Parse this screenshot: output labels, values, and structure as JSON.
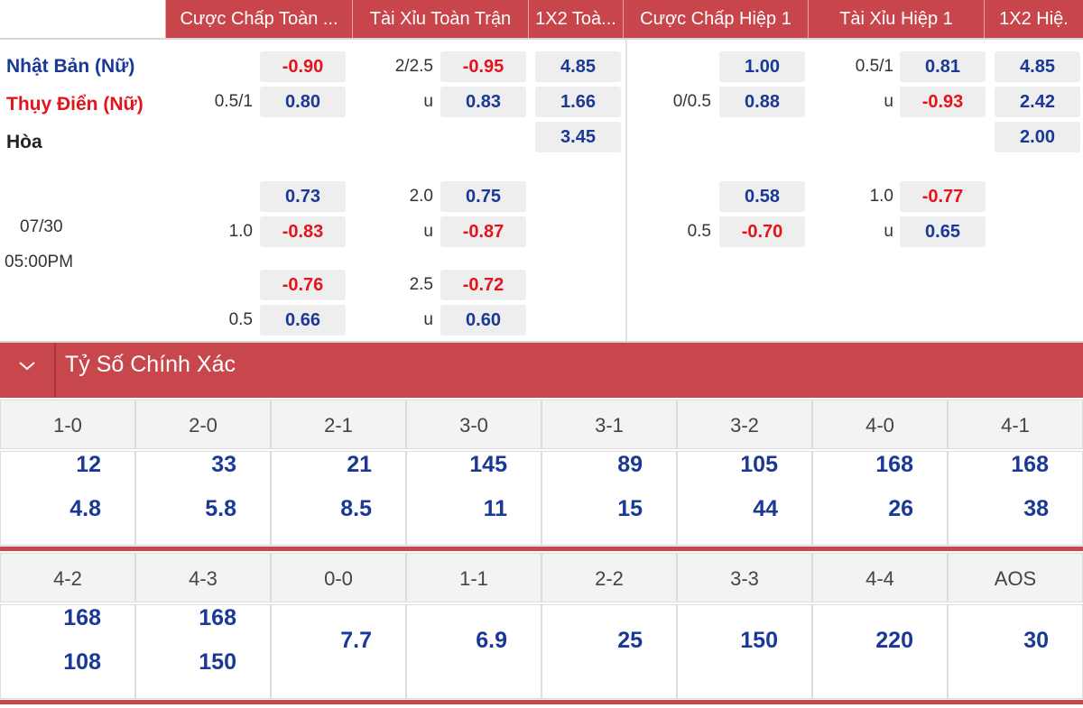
{
  "columns": [
    "Cược Chấp Toàn ...",
    "Tài Xỉu Toàn Trận",
    "1X2 Toà...",
    "Cược Chấp Hiệp 1",
    "Tài Xỉu Hiệp 1",
    "1X2 Hiệ."
  ],
  "match": {
    "home": "Nhật Bản (Nữ)",
    "away": "Thụy Điển (Nữ)",
    "draw": "Hòa",
    "date": "07/30",
    "time": "05:00PM"
  },
  "odds_rows": [
    {
      "hdp_odds": "-0.90",
      "ou_line": "2/2.5",
      "ou_odds": "-0.95",
      "x12": "4.85",
      "h1_hdp_odds": "1.00",
      "h1_ou_line": "0.5/1",
      "h1_ou_odds": "0.81",
      "h1_x12": "4.85"
    },
    {
      "hdp_line": "0.5/1",
      "hdp_odds": "0.80",
      "ou_line": "u",
      "ou_odds": "0.83",
      "x12": "1.66",
      "h1_hdp_line": "0/0.5",
      "h1_hdp_odds": "0.88",
      "h1_ou_line": "u",
      "h1_ou_odds": "-0.93",
      "h1_x12": "2.42"
    },
    {
      "x12": "3.45",
      "h1_x12": "2.00"
    },
    {
      "hdp_odds": "0.73",
      "ou_line": "2.0",
      "ou_odds": "0.75",
      "h1_hdp_odds": "0.58",
      "h1_ou_line": "1.0",
      "h1_ou_odds": "-0.77"
    },
    {
      "hdp_line": "1.0",
      "hdp_odds": "-0.83",
      "ou_line": "u",
      "ou_odds": "-0.87",
      "h1_hdp_line": "0.5",
      "h1_hdp_odds": "-0.70",
      "h1_ou_line": "u",
      "h1_ou_odds": "0.65"
    },
    {
      "hdp_odds": "-0.76",
      "ou_line": "2.5",
      "ou_odds": "-0.72"
    },
    {
      "hdp_line": "0.5",
      "hdp_odds": "0.66",
      "ou_line": "u",
      "ou_odds": "0.60"
    }
  ],
  "correct_score": {
    "title": "Tỷ Số Chính Xác",
    "groups": [
      {
        "scores": [
          {
            "label": "1-0",
            "odds": [
              "12",
              "4.8"
            ]
          },
          {
            "label": "2-0",
            "odds": [
              "33",
              "5.8"
            ]
          },
          {
            "label": "2-1",
            "odds": [
              "21",
              "8.5"
            ]
          },
          {
            "label": "3-0",
            "odds": [
              "145",
              "11"
            ]
          },
          {
            "label": "3-1",
            "odds": [
              "89",
              "15"
            ]
          },
          {
            "label": "3-2",
            "odds": [
              "105",
              "44"
            ]
          },
          {
            "label": "4-0",
            "odds": [
              "168",
              "26"
            ]
          },
          {
            "label": "4-1",
            "odds": [
              "168",
              "38"
            ]
          }
        ]
      },
      {
        "scores": [
          {
            "label": "4-2",
            "odds": [
              "168",
              "108"
            ]
          },
          {
            "label": "4-3",
            "odds": [
              "168",
              "150"
            ]
          },
          {
            "label": "0-0",
            "odds": [
              "7.7"
            ]
          },
          {
            "label": "1-1",
            "odds": [
              "6.9"
            ]
          },
          {
            "label": "2-2",
            "odds": [
              "25"
            ]
          },
          {
            "label": "3-3",
            "odds": [
              "150"
            ]
          },
          {
            "label": "4-4",
            "odds": [
              "220"
            ]
          },
          {
            "label": "AOS",
            "odds": [
              "30"
            ]
          }
        ]
      }
    ]
  }
}
